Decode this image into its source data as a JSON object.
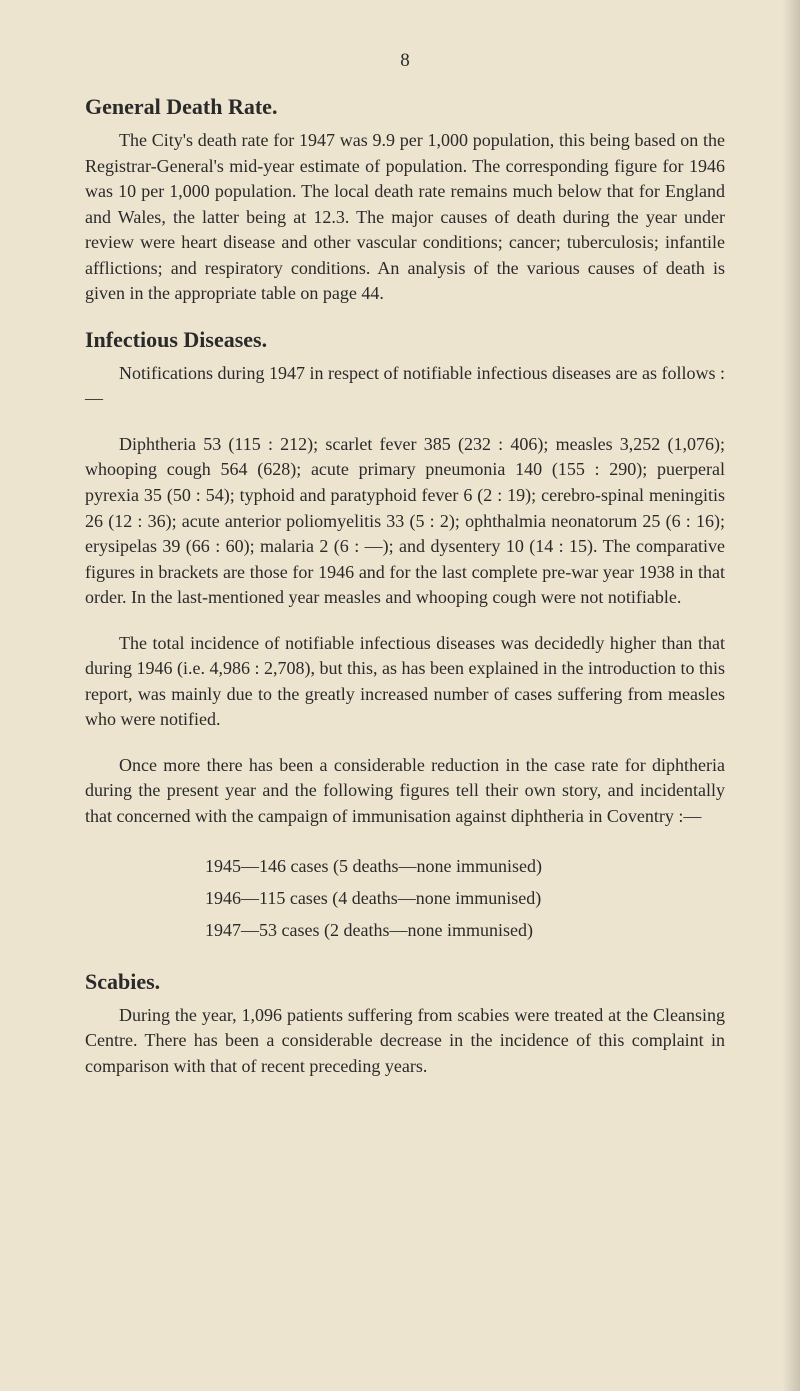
{
  "page_number": "8",
  "sections": {
    "general_death_rate": {
      "heading": "General Death Rate.",
      "paragraph": "The City's death rate for 1947 was 9.9 per 1,000 population, this being based on the Registrar-General's mid-year estimate of population. The corresponding figure for 1946 was 10 per 1,000 population. The local death rate remains much below that for England and Wales, the latter being at 12.3. The major causes of death during the year under review were heart disease and other vascular conditions; cancer; tuberculosis; infantile afflictions; and respiratory conditions. An analysis of the various causes of death is given in the appropriate table on page 44."
    },
    "infectious_diseases": {
      "heading": "Infectious Diseases.",
      "para1": "Notifications during 1947 in respect of notifiable infectious diseases are as follows :—",
      "para2": "Diphtheria 53 (115 : 212); scarlet fever 385 (232 : 406); measles 3,252 (1,076); whooping cough 564 (628); acute primary pneumonia 140 (155 : 290); puerperal pyrexia 35 (50 : 54); typhoid and paratyphoid fever 6 (2 : 19); cerebro-spinal meningitis 26 (12 : 36); acute anterior poliomyelitis 33 (5 : 2); ophthalmia neonatorum 25 (6 : 16); erysipelas 39 (66 : 60); malaria 2 (6 : —); and dysentery 10 (14 : 15). The comparative figures in brackets are those for 1946 and for the last complete pre-war year 1938 in that order. In the last-mentioned year measles and whooping cough were not notifiable.",
      "para3": "The total incidence of notifiable infectious diseases was decidedly higher than that during 1946 (i.e. 4,986 : 2,708), but this, as has been explained in the introduction to this report, was mainly due to the greatly increased number of cases suffering from measles who were notified.",
      "para4": "Once more there has been a considerable reduction in the case rate for diphtheria during the present year and the following figures tell their own story, and incidentally that concerned with the campaign of immunisation against diphtheria in Coventry :—",
      "immunisation": {
        "item1": "1945—146 cases (5 deaths—none immunised)",
        "item2": "1946—115 cases (4 deaths—none immunised)",
        "item3": "1947—53 cases (2 deaths—none immunised)"
      }
    },
    "scabies": {
      "heading": "Scabies.",
      "paragraph": "During the year, 1,096 patients suffering from scabies were treated at the Cleansing Centre. There has been a considerable decrease in the incidence of this complaint in comparison with that of recent preceding years."
    }
  }
}
